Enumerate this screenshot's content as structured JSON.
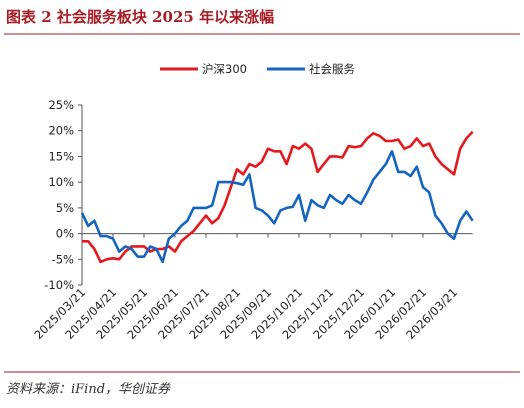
{
  "chart_data": {
    "type": "line",
    "title": "图表 2  社会服务板块 2025 年以来涨幅",
    "source": "资料来源：iFind，华创证券",
    "categories": [
      "2025/03/21",
      null,
      null,
      null,
      null,
      "2025/04/21",
      null,
      null,
      null,
      null,
      "2025/05/21",
      null,
      null,
      null,
      null,
      "2025/06/21",
      null,
      null,
      null,
      null,
      "2025/07/21",
      null,
      null,
      null,
      null,
      "2025/08/21",
      null,
      null,
      null,
      null,
      "2025/09/21",
      null,
      null,
      null,
      null,
      "2025/10/21",
      null,
      null,
      null,
      null,
      "2025/11/21",
      null,
      null,
      null,
      null,
      "2025/12/21",
      null,
      null,
      null,
      null,
      "2026/01/21",
      null,
      null,
      null,
      null,
      "2026/02/21",
      null,
      null,
      null,
      null,
      "2026/03/21",
      null,
      null,
      null
    ],
    "series": [
      {
        "name": "沪深300",
        "color": "#e3191c",
        "values": [
          -1.5,
          -1.5,
          -3,
          -5.5,
          -5,
          -4.8,
          -5,
          -3.5,
          -2.5,
          -2.5,
          -2.5,
          -3.5,
          -3,
          -3,
          -2.5,
          -3.5,
          -1.5,
          -0.5,
          0.5,
          2,
          3.5,
          2,
          3,
          5.5,
          9,
          12.5,
          11.5,
          13.5,
          13,
          14,
          16.5,
          16,
          16,
          13.5,
          17,
          16.5,
          17.5,
          16.5,
          12,
          13.5,
          15,
          15,
          14.8,
          17,
          16.8,
          17,
          18.5,
          19.5,
          19,
          18,
          18,
          18.3,
          16.5,
          17,
          18.5,
          17,
          17.5,
          15,
          13.5,
          12.5,
          11.5,
          16.5,
          18.5,
          19.8
        ]
      },
      {
        "name": "社会服务",
        "color": "#1565c0",
        "values": [
          4,
          1.5,
          2.5,
          -0.5,
          -0.5,
          -1,
          -3.5,
          -2.5,
          -3,
          -4.5,
          -4.5,
          -2.5,
          -3,
          -5.5,
          -1,
          0,
          1.5,
          2.5,
          5,
          5,
          5,
          5.5,
          10,
          10,
          10,
          9.8,
          9.5,
          11.5,
          5,
          4.5,
          3.5,
          2,
          4.5,
          5,
          5.2,
          7.5,
          2.5,
          6.5,
          5.5,
          5,
          7.5,
          6.5,
          5.8,
          7.5,
          6.5,
          5.8,
          8,
          10.5,
          12,
          13.5,
          16,
          12,
          12,
          11.2,
          13,
          9,
          8,
          3.5,
          2,
          0,
          -1,
          2.5,
          4.3,
          2.5
        ]
      }
    ],
    "ylim": [
      -10,
      25
    ],
    "yticks": [
      {
        "value": -10,
        "label": "-10%"
      },
      {
        "value": -5,
        "label": "-5%"
      },
      {
        "value": 0,
        "label": "0%"
      },
      {
        "value": 5,
        "label": "5%"
      },
      {
        "value": 10,
        "label": "10%"
      },
      {
        "value": 15,
        "label": "15%"
      },
      {
        "value": 20,
        "label": "20%"
      },
      {
        "value": 25,
        "label": "25%"
      }
    ],
    "legend": "top",
    "grid": false
  }
}
